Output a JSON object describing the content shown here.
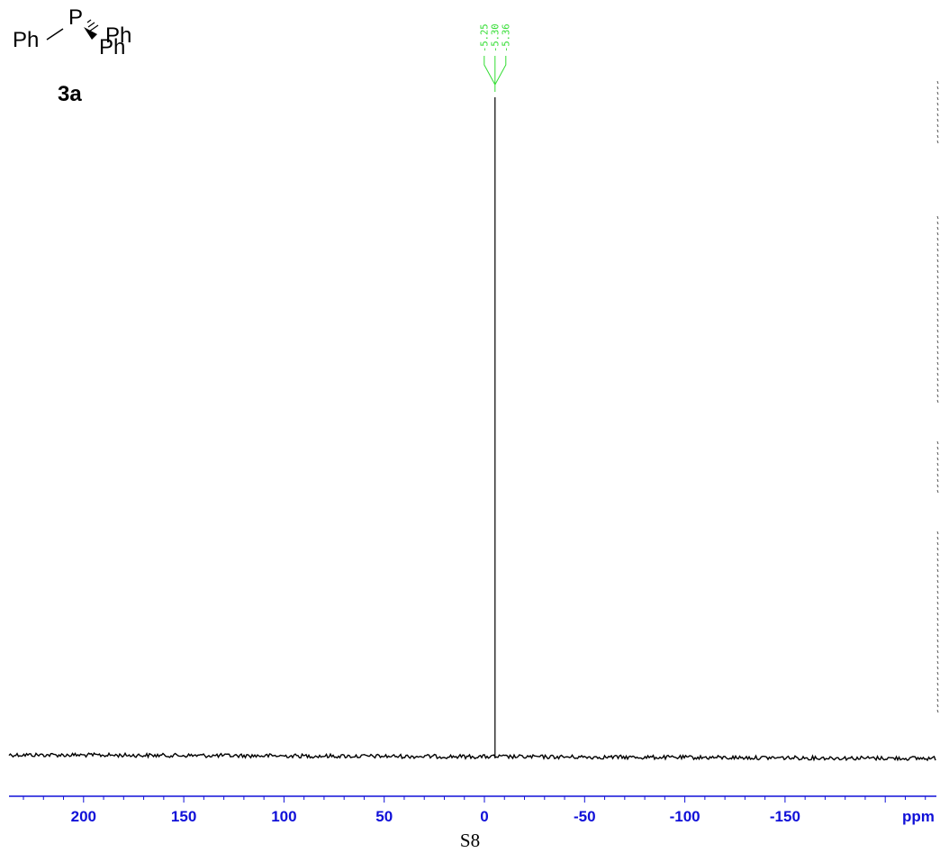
{
  "structure": {
    "phosphorus": "P",
    "phenyl_left": "Ph",
    "phenyl_right": "Ph",
    "phenyl_bottom": "Ph",
    "compound_label": "3a"
  },
  "page_number": "S8",
  "colors": {
    "axis": "#1010d8",
    "spectrum": "#000000",
    "peak_labels": "#33dd33"
  },
  "chart_data": {
    "type": "line",
    "title": "",
    "xlabel": "ppm",
    "ylabel": "",
    "xlim": [
      230,
      -230
    ],
    "x_direction": "descending",
    "grid": false,
    "x_ticks": [
      200,
      150,
      100,
      50,
      0,
      -50,
      -100,
      -150
    ],
    "x_tick_labels": [
      "200",
      "150",
      "100",
      "50",
      "0",
      "-50",
      "-100",
      "-150"
    ],
    "minor_tick_step": 10,
    "peaks": [
      {
        "ppm": -5.3,
        "relative_height": 1.0
      }
    ],
    "peak_labels": [
      "-5.25",
      "-5.30",
      "-5.36"
    ]
  }
}
